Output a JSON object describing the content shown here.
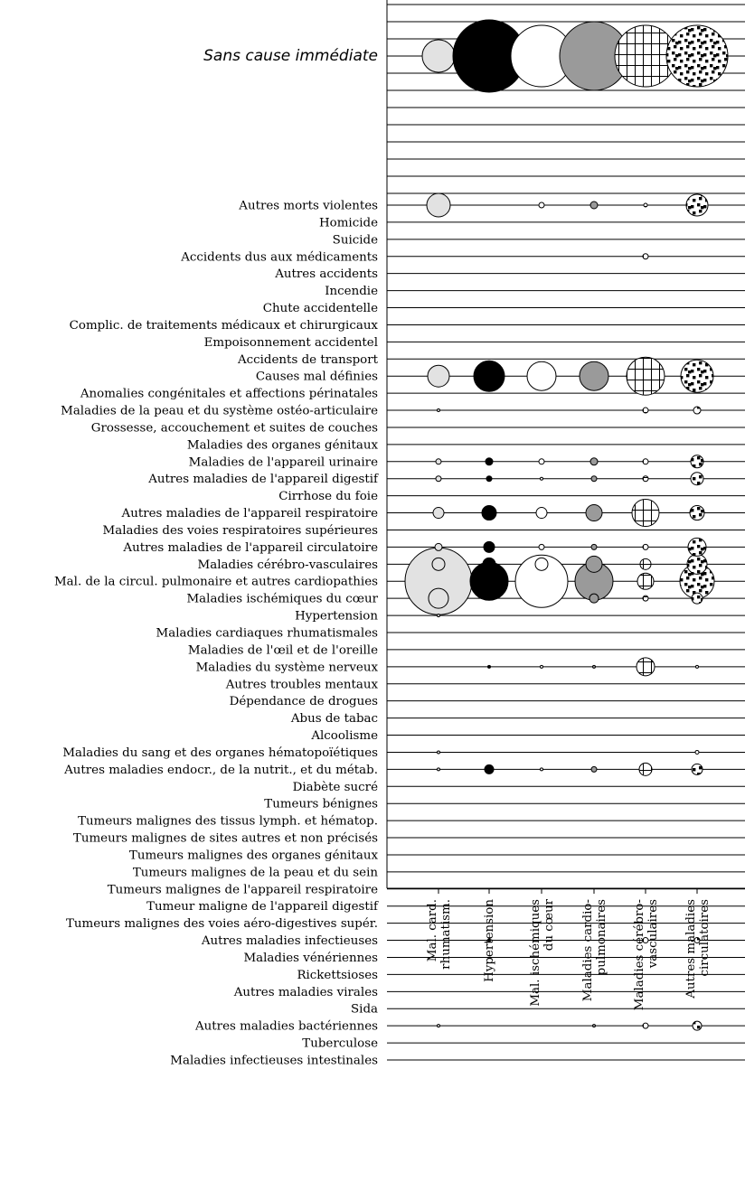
{
  "chart_data": {
    "type": "bubble-matrix",
    "title": "Sans cause immédiate",
    "columns": [
      [
        "Mal. card.",
        "rhumatism."
      ],
      [
        "Hypertension"
      ],
      [
        "Mal. ischémiques",
        "du cœur"
      ],
      [
        "Maladies cardio-",
        "pulmonaires"
      ],
      [
        "Maladies cérébro-",
        "vasculaires"
      ],
      [
        "Autres maladies",
        "circulatoires"
      ]
    ],
    "column_fills": [
      "#e2e2e2",
      "#000000",
      "#ffffff",
      "#9a9a9a",
      "vertical-hatch",
      "checker"
    ],
    "summary_row": {
      "label": "Sans cause immédiate",
      "values": [
        18,
        40,
        34,
        38,
        34,
        34
      ]
    },
    "rows": [
      "Autres morts violentes",
      "Homicide",
      "Suicide",
      "Accidents dus aux médicaments",
      "Autres accidents",
      "Incendie",
      "Chute accidentelle",
      "Complic. de traitements médicaux et chirurgicaux",
      "Empoisonnement accidentel",
      "Accidents de transport",
      "Causes mal définies",
      "Anomalies congénitales et affections périnatales",
      "Maladies de la peau et du système ostéo-articulaire",
      "Grossesse, accouchement et suites de couches",
      "Maladies des organes génitaux",
      "Maladies de l'appareil urinaire",
      "Autres maladies de l'appareil digestif",
      "Cirrhose du foie",
      "Autres maladies de l'appareil respiratoire",
      "Maladies des voies respiratoires supérieures",
      "Autres maladies de l'appareil circulatoire",
      "Maladies cérébro-vasculaires",
      "Mal. de la circul. pulmonaire et autres cardiopathies",
      "Maladies ischémiques du cœur",
      "Hypertension",
      "Maladies cardiaques rhumatismales",
      "Maladies de l'œil et de l'oreille",
      "Maladies du système nerveux",
      "Autres troubles mentaux",
      "Dépendance de drogues",
      "Abus de tabac",
      "Alcoolisme",
      "Maladies du sang et des organes hématopoïétiques",
      "Autres maladies endocr., de la nutrit., et du métab.",
      "Diabète sucré",
      "Tumeurs bénignes",
      "Tumeurs malignes des tissus lymph. et hématop.",
      "Tumeurs malignes de sites autres et non précisés",
      "Tumeurs malignes des organes génitaux",
      "Tumeurs malignes de la peau et du sein",
      "Tumeurs malignes de l'appareil respiratoire",
      "Tumeur maligne de l'appareil digestif",
      "Tumeurs malignes des voies aéro-digestives supér.",
      "Autres maladies infectieuses",
      "Maladies vénériennes",
      "Rickettsioses",
      "Autres maladies virales",
      "Sida",
      "Autres maladies bactériennes",
      "Tuberculose",
      "Maladies infectieuses intestinales"
    ],
    "bubbles": [
      {
        "row": 0,
        "col": 0,
        "r": 13
      },
      {
        "row": 0,
        "col": 2,
        "r": 3
      },
      {
        "row": 0,
        "col": 3,
        "r": 4
      },
      {
        "row": 0,
        "col": 4,
        "r": 2
      },
      {
        "row": 0,
        "col": 5,
        "r": 12
      },
      {
        "row": 3,
        "col": 4,
        "r": 3
      },
      {
        "row": 10,
        "col": 0,
        "r": 12
      },
      {
        "row": 10,
        "col": 1,
        "r": 17
      },
      {
        "row": 10,
        "col": 2,
        "r": 16
      },
      {
        "row": 10,
        "col": 3,
        "r": 16
      },
      {
        "row": 10,
        "col": 4,
        "r": 21
      },
      {
        "row": 10,
        "col": 5,
        "r": 18
      },
      {
        "row": 12,
        "col": 0,
        "r": 1.5
      },
      {
        "row": 12,
        "col": 4,
        "r": 3
      },
      {
        "row": 12,
        "col": 5,
        "r": 4
      },
      {
        "row": 15,
        "col": 0,
        "r": 3
      },
      {
        "row": 15,
        "col": 1,
        "r": 4
      },
      {
        "row": 15,
        "col": 2,
        "r": 3
      },
      {
        "row": 15,
        "col": 3,
        "r": 4
      },
      {
        "row": 15,
        "col": 4,
        "r": 3
      },
      {
        "row": 15,
        "col": 5,
        "r": 7
      },
      {
        "row": 16,
        "col": 0,
        "r": 3
      },
      {
        "row": 16,
        "col": 1,
        "r": 3
      },
      {
        "row": 16,
        "col": 2,
        "r": 1.5
      },
      {
        "row": 16,
        "col": 3,
        "r": 3
      },
      {
        "row": 16,
        "col": 4,
        "r": 3
      },
      {
        "row": 16,
        "col": 5,
        "r": 7
      },
      {
        "row": 18,
        "col": 0,
        "r": 6
      },
      {
        "row": 18,
        "col": 1,
        "r": 8
      },
      {
        "row": 18,
        "col": 2,
        "r": 6
      },
      {
        "row": 18,
        "col": 3,
        "r": 9
      },
      {
        "row": 18,
        "col": 4,
        "r": 15
      },
      {
        "row": 18,
        "col": 5,
        "r": 8
      },
      {
        "row": 20,
        "col": 0,
        "r": 4
      },
      {
        "row": 20,
        "col": 1,
        "r": 6
      },
      {
        "row": 20,
        "col": 2,
        "r": 3
      },
      {
        "row": 20,
        "col": 3,
        "r": 3
      },
      {
        "row": 20,
        "col": 4,
        "r": 3
      },
      {
        "row": 20,
        "col": 5,
        "r": 10
      },
      {
        "row": 21,
        "col": 0,
        "r": 7
      },
      {
        "row": 21,
        "col": 1,
        "r": 7
      },
      {
        "row": 21,
        "col": 2,
        "r": 7
      },
      {
        "row": 21,
        "col": 3,
        "r": 9
      },
      {
        "row": 21,
        "col": 4,
        "r": 6
      },
      {
        "row": 21,
        "col": 5,
        "r": 11
      },
      {
        "row": 22,
        "col": 0,
        "r": 37
      },
      {
        "row": 22,
        "col": 1,
        "r": 21
      },
      {
        "row": 22,
        "col": 2,
        "r": 29
      },
      {
        "row": 22,
        "col": 3,
        "r": 21
      },
      {
        "row": 22,
        "col": 4,
        "r": 9
      },
      {
        "row": 22,
        "col": 5,
        "r": 19
      },
      {
        "row": 23,
        "col": 0,
        "r": 11
      },
      {
        "row": 23,
        "col": 1,
        "r": 2
      },
      {
        "row": 23,
        "col": 3,
        "r": 5
      },
      {
        "row": 23,
        "col": 4,
        "r": 3
      },
      {
        "row": 23,
        "col": 5,
        "r": 6
      },
      {
        "row": 24,
        "col": 0,
        "r": 1.5
      },
      {
        "row": 27,
        "col": 1,
        "r": 1.5
      },
      {
        "row": 27,
        "col": 2,
        "r": 1.5
      },
      {
        "row": 27,
        "col": 3,
        "r": 1.5
      },
      {
        "row": 27,
        "col": 4,
        "r": 10
      },
      {
        "row": 27,
        "col": 5,
        "r": 1.5
      },
      {
        "row": 32,
        "col": 0,
        "r": 1.5
      },
      {
        "row": 32,
        "col": 5,
        "r": 2
      },
      {
        "row": 33,
        "col": 0,
        "r": 1.5
      },
      {
        "row": 33,
        "col": 1,
        "r": 5
      },
      {
        "row": 33,
        "col": 2,
        "r": 1.5
      },
      {
        "row": 33,
        "col": 3,
        "r": 3
      },
      {
        "row": 33,
        "col": 4,
        "r": 7
      },
      {
        "row": 33,
        "col": 5,
        "r": 6
      },
      {
        "row": 43,
        "col": 1,
        "r": 1.5
      },
      {
        "row": 43,
        "col": 4,
        "r": 3
      },
      {
        "row": 43,
        "col": 5,
        "r": 3
      },
      {
        "row": 48,
        "col": 0,
        "r": 1.5
      },
      {
        "row": 48,
        "col": 3,
        "r": 1.5
      },
      {
        "row": 48,
        "col": 4,
        "r": 3
      },
      {
        "row": 48,
        "col": 5,
        "r": 5
      }
    ]
  }
}
